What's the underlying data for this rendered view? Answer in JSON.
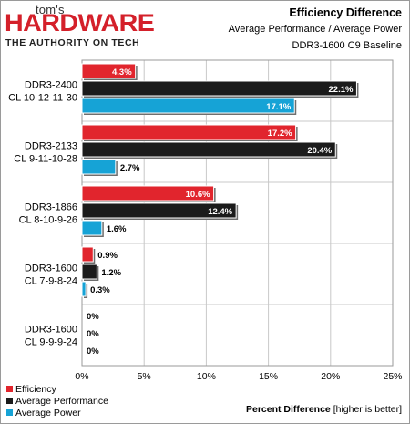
{
  "brand": {
    "top": "tom's",
    "main": "HARDWARE",
    "tagline": "THE AUTHORITY ON TECH"
  },
  "header": {
    "title": "Efficiency Difference",
    "subtitle1": "Average Performance / Average Power",
    "subtitle2": "DDR3-1600 C9 Baseline"
  },
  "chart_data": {
    "type": "bar",
    "orientation": "horizontal",
    "title": "Efficiency Difference",
    "subtitle": "Average Performance / Average Power",
    "baseline_note": "DDR3-1600 C9 Baseline",
    "categories": [
      [
        "DDR3-2400",
        "CL 10-12-11-30"
      ],
      [
        "DDR3-2133",
        "CL 9-11-10-28"
      ],
      [
        "DDR3-1866",
        "CL 8-10-9-26"
      ],
      [
        "DDR3-1600",
        "CL 7-9-8-24"
      ],
      [
        "DDR3-1600",
        "CL 9-9-9-24"
      ]
    ],
    "series": [
      {
        "name": "Efficiency",
        "color": "#e1252d",
        "values": [
          4.3,
          17.2,
          10.6,
          0.9,
          0
        ],
        "labels": [
          "4.3%",
          "17.2%",
          "10.6%",
          "0.9%",
          "0%"
        ]
      },
      {
        "name": "Average Performance",
        "color": "#1b1b1b",
        "values": [
          22.1,
          20.4,
          12.4,
          1.2,
          0
        ],
        "labels": [
          "22.1%",
          "20.4%",
          "12.4%",
          "1.2%",
          "0%"
        ]
      },
      {
        "name": "Average Power",
        "color": "#16a3d6",
        "values": [
          17.1,
          2.7,
          1.6,
          0.3,
          0
        ],
        "labels": [
          "17.1%",
          "2.7%",
          "1.6%",
          "0.3%",
          "0%"
        ]
      }
    ],
    "xlim": [
      0,
      25
    ],
    "xticks": [
      0,
      5,
      10,
      15,
      20,
      25
    ],
    "xtick_labels": [
      "0%",
      "5%",
      "10%",
      "15%",
      "20%",
      "25%"
    ],
    "xlabel": "Percent Difference",
    "xlabel_note": "[higher is better]",
    "grid": true,
    "legend_position": "bottom-left"
  }
}
